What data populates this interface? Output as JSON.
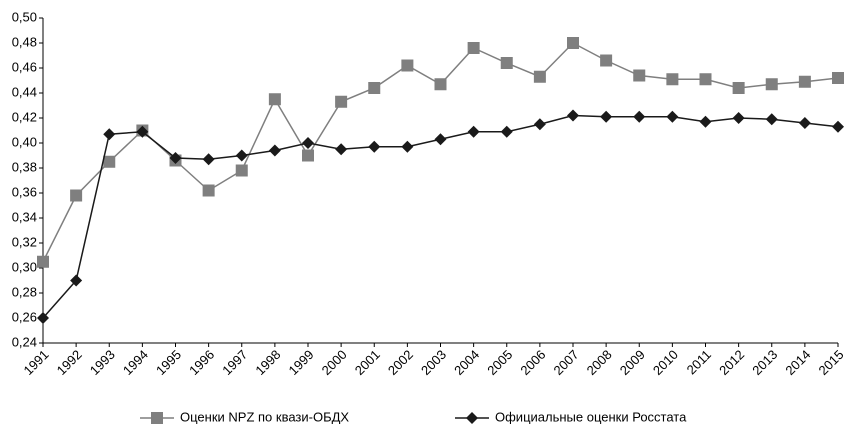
{
  "chart_data": {
    "type": "line",
    "categories": [
      "1991",
      "1992",
      "1993",
      "1994",
      "1995",
      "1996",
      "1997",
      "1998",
      "1999",
      "2000",
      "2001",
      "2002",
      "2003",
      "2004",
      "2005",
      "2006",
      "2007",
      "2008",
      "2009",
      "2010",
      "2011",
      "2012",
      "2013",
      "2014",
      "2015"
    ],
    "series": [
      {
        "name": "Оценки NPZ по квази-ОБДХ",
        "color": "#7f7f7f",
        "marker": "square",
        "values": [
          0.305,
          0.358,
          0.385,
          0.41,
          0.386,
          0.362,
          0.378,
          0.435,
          0.39,
          0.433,
          0.444,
          0.462,
          0.447,
          0.476,
          0.464,
          0.453,
          0.48,
          0.466,
          0.454,
          0.451,
          0.451,
          0.444,
          0.447,
          0.449,
          0.452
        ]
      },
      {
        "name": "Официальные оценки Росстата",
        "color": "#1a1a1a",
        "marker": "diamond",
        "values": [
          0.26,
          0.29,
          0.407,
          0.409,
          0.388,
          0.387,
          0.39,
          0.394,
          0.4,
          0.395,
          0.397,
          0.397,
          0.403,
          0.409,
          0.409,
          0.415,
          0.422,
          0.421,
          0.421,
          0.421,
          0.417,
          0.42,
          0.419,
          0.416,
          0.413
        ]
      }
    ],
    "ylim": [
      0.24,
      0.5
    ],
    "yticks": [
      {
        "value": 0.24,
        "label": "0,24"
      },
      {
        "value": 0.26,
        "label": "0,26"
      },
      {
        "value": 0.28,
        "label": "0,28"
      },
      {
        "value": 0.3,
        "label": "0,30"
      },
      {
        "value": 0.32,
        "label": "0,32"
      },
      {
        "value": 0.34,
        "label": "0,34"
      },
      {
        "value": 0.36,
        "label": "0,36"
      },
      {
        "value": 0.38,
        "label": "0,38"
      },
      {
        "value": 0.4,
        "label": "0,40"
      },
      {
        "value": 0.42,
        "label": "0,42"
      },
      {
        "value": 0.44,
        "label": "0,44"
      },
      {
        "value": 0.46,
        "label": "0,46"
      },
      {
        "value": 0.48,
        "label": "0,48"
      },
      {
        "value": 0.5,
        "label": "0,50"
      }
    ],
    "grid": false,
    "legend": "bottom"
  }
}
